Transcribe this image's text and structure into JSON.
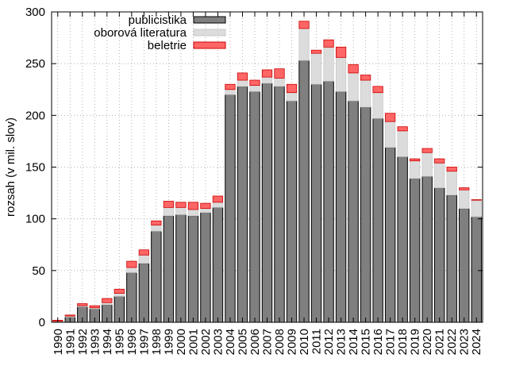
{
  "chart_data": {
    "type": "bar",
    "stacked": true,
    "xlabel": "",
    "ylabel": "rozsah (v mil. slov)",
    "ylim": [
      0,
      300
    ],
    "yticks": [
      0,
      50,
      100,
      150,
      200,
      250,
      300
    ],
    "grid": true,
    "legend_position": "top-center",
    "categories": [
      "1990",
      "1991",
      "1992",
      "1993",
      "1994",
      "1995",
      "1996",
      "1997",
      "1998",
      "1999",
      "2000",
      "2001",
      "2002",
      "2003",
      "2004",
      "2005",
      "2006",
      "2007",
      "2008",
      "2009",
      "2010",
      "2011",
      "2012",
      "2013",
      "2014",
      "2015",
      "2016",
      "2017",
      "2018",
      "2019",
      "2020",
      "2021",
      "2022",
      "2023",
      "2024"
    ],
    "series": [
      {
        "name": "publicistika",
        "color": "#7f7f7f",
        "values": [
          0.5,
          5,
          15,
          13,
          17,
          25,
          48,
          57,
          88,
          103,
          104,
          103,
          106,
          111,
          220,
          228,
          223,
          231,
          228,
          214,
          253,
          230,
          233,
          223,
          214,
          208,
          197,
          169,
          160,
          139,
          141,
          130,
          123,
          110,
          102
        ]
      },
      {
        "name": "oborová literatura",
        "color": "#dcdcdc",
        "values": [
          0.5,
          1,
          1,
          1,
          2,
          3,
          5,
          8,
          6,
          8,
          7,
          6,
          4,
          5,
          5,
          6,
          6,
          6,
          8,
          8,
          31,
          30,
          33,
          33,
          27,
          26,
          25,
          25,
          25,
          17,
          23,
          24,
          23,
          18,
          16
        ]
      },
      {
        "name": "beletrie",
        "color": "#ff6666",
        "values": [
          1,
          1,
          2,
          2,
          4,
          4,
          6,
          5,
          4,
          6,
          5,
          7,
          5,
          6,
          5,
          7,
          5,
          7,
          9,
          8,
          7,
          3,
          7,
          10,
          8,
          5,
          6,
          8,
          4,
          2,
          4,
          4,
          4,
          2,
          0.5
        ]
      }
    ]
  }
}
